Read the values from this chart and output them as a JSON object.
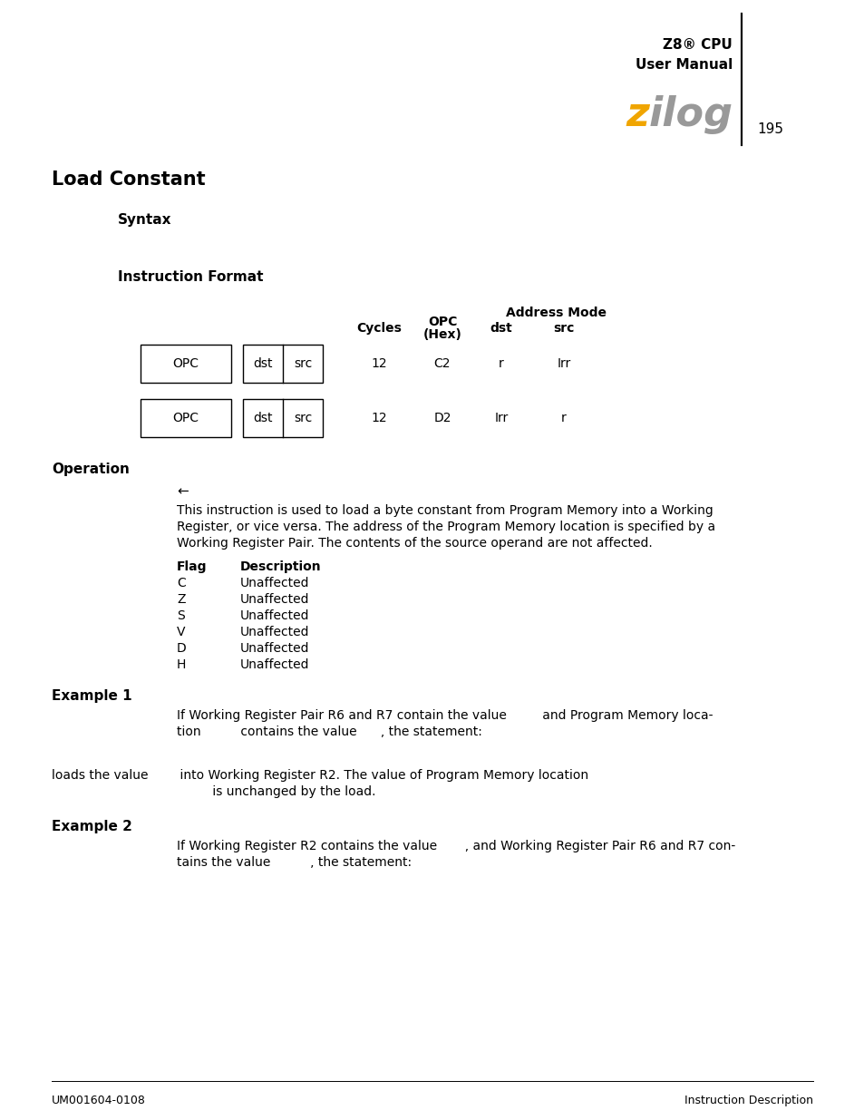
{
  "page_title": "Load Constant",
  "header_text1": "Z8® CPU",
  "header_text2": "User Manual",
  "page_number": "195",
  "zilog_z": "z",
  "zilog_rest": "ilog",
  "section1": "Syntax",
  "section2": "Instruction Format",
  "col_headers_top": "Address Mode",
  "col_header_cycles": "Cycles",
  "col_header_opc_line1": "OPC",
  "col_header_opc_line2": "(Hex)",
  "col_header_dst": "dst",
  "col_header_src": "src",
  "row1": {
    "cycles": "12",
    "opc": "C2",
    "dst": "r",
    "src": "Irr"
  },
  "row2": {
    "cycles": "12",
    "opc": "D2",
    "dst": "Irr",
    "src": "r"
  },
  "section3": "Operation",
  "arrow": "←",
  "operation_text": "This instruction is used to load a byte constant from Program Memory into a Working\nRegister, or vice versa. The address of the Program Memory location is specified by a\nWorking Register Pair. The contents of the source operand are not affected.",
  "flags_header": [
    "Flag",
    "Description"
  ],
  "flags": [
    [
      "C",
      "Unaffected"
    ],
    [
      "Z",
      "Unaffected"
    ],
    [
      "S",
      "Unaffected"
    ],
    [
      "V",
      "Unaffected"
    ],
    [
      "D",
      "Unaffected"
    ],
    [
      "H",
      "Unaffected"
    ]
  ],
  "example1_title": "Example 1",
  "example1_line1": "If Working Register Pair R6 and R7 contain the value         and Program Memory loca-",
  "example1_line2": "tion          contains the value      , the statement:",
  "example1_line3": "loads the value        into Working Register R2. The value of Program Memory location",
  "example1_line4": "         is unchanged by the load.",
  "example2_title": "Example 2",
  "example2_line1": "If Working Register R2 contains the value       , and Working Register Pair R6 and R7 con-",
  "example2_line2": "tains the value          , the statement:",
  "footer_left": "UM001604-0108",
  "footer_right": "Instruction Description",
  "bg_color": "#ffffff",
  "text_color": "#000000",
  "zilog_z_color": "#f0a500",
  "zilog_rest_color": "#999999",
  "header_line_color": "#000000"
}
